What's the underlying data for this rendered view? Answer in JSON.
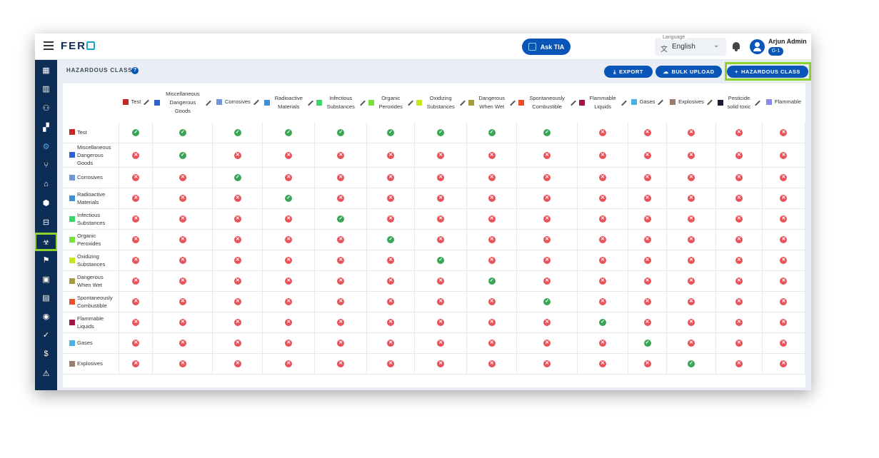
{
  "app": {
    "logo_text": "FER"
  },
  "header": {
    "ask_label": "Ask TIA",
    "language_caption": "Language",
    "language_value": "English",
    "user_name": "Arjun Admin",
    "user_badge": "G-1"
  },
  "sidebar": {
    "items": [
      {
        "icon": "dashboard-icon",
        "glyph": "▦"
      },
      {
        "icon": "building-icon",
        "glyph": "▥"
      },
      {
        "icon": "people-icon",
        "glyph": "⚇"
      },
      {
        "icon": "truck-icon",
        "glyph": "▞"
      },
      {
        "icon": "settings-icon",
        "glyph": "⚙"
      },
      {
        "icon": "fork-icon",
        "glyph": "⑂"
      },
      {
        "icon": "warehouse-icon",
        "glyph": "⌂"
      },
      {
        "icon": "package-icon",
        "glyph": "⬢"
      },
      {
        "icon": "briefcase-icon",
        "glyph": "⊟"
      },
      {
        "icon": "hazard-icon",
        "glyph": "☣"
      },
      {
        "icon": "flag-icon",
        "glyph": "⚑"
      },
      {
        "icon": "id-card-icon",
        "glyph": "▣"
      },
      {
        "icon": "document-icon",
        "glyph": "▤"
      },
      {
        "icon": "cash-icon",
        "glyph": "◉"
      },
      {
        "icon": "check-icon",
        "glyph": "✓"
      },
      {
        "icon": "dollar-icon",
        "glyph": "$"
      },
      {
        "icon": "alert-icon",
        "glyph": "⚠"
      }
    ]
  },
  "page": {
    "title": "HAZARDOUS CLASS",
    "export_label": "EXPORT",
    "bulk_upload_label": "BULK UPLOAD",
    "add_label": "HAZARDOUS CLASS"
  },
  "classes": [
    {
      "name": "Test",
      "color": "#c62828"
    },
    {
      "name": "Miscellaneous Dangerous Goods",
      "color": "#2f5fd0"
    },
    {
      "name": "Corrosives",
      "color": "#6f94d8"
    },
    {
      "name": "Radioactive Materials",
      "color": "#3f8ed8"
    },
    {
      "name": "Infectious Substances",
      "color": "#3bd66a"
    },
    {
      "name": "Organic Peroxides",
      "color": "#7be03a"
    },
    {
      "name": "Oxidizing Substances",
      "color": "#c5e81a"
    },
    {
      "name": "Dangerous When Wet",
      "color": "#a89a3a"
    },
    {
      "name": "Spontaneously Combustible",
      "color": "#e8502a"
    },
    {
      "name": "Flammable Liquids",
      "color": "#a0184a"
    },
    {
      "name": "Gases",
      "color": "#4ab0e8"
    },
    {
      "name": "Explosives",
      "color": "#9c7c6a"
    },
    {
      "name": "Pesticide solid toxic",
      "color": "#1a1a3a"
    },
    {
      "name": "Flammable",
      "color": "#8c8ce8"
    }
  ],
  "rows": [
    {
      "name": "Test",
      "color": "#c62828",
      "cells": [
        1,
        1,
        1,
        1,
        1,
        1,
        1,
        1,
        1,
        0,
        0,
        0,
        0,
        0
      ]
    },
    {
      "name": "Miscellaneous Dangerous Goods",
      "color": "#2f5fd0",
      "cells": [
        0,
        1,
        0,
        0,
        0,
        0,
        0,
        0,
        0,
        0,
        0,
        0,
        0,
        0
      ]
    },
    {
      "name": "Corrosives",
      "color": "#6f94d8",
      "cells": [
        0,
        0,
        1,
        0,
        0,
        0,
        0,
        0,
        0,
        0,
        0,
        0,
        0,
        0
      ]
    },
    {
      "name": "Radioactive Materials",
      "color": "#3f8ed8",
      "cells": [
        0,
        0,
        0,
        1,
        0,
        0,
        0,
        0,
        0,
        0,
        0,
        0,
        0,
        0
      ]
    },
    {
      "name": "Infectious Substances",
      "color": "#3bd66a",
      "cells": [
        0,
        0,
        0,
        0,
        1,
        0,
        0,
        0,
        0,
        0,
        0,
        0,
        0,
        0
      ]
    },
    {
      "name": "Organic Peroxides",
      "color": "#7be03a",
      "cells": [
        0,
        0,
        0,
        0,
        0,
        1,
        0,
        0,
        0,
        0,
        0,
        0,
        0,
        0
      ]
    },
    {
      "name": "Oxidizing Substances",
      "color": "#c5e81a",
      "cells": [
        0,
        0,
        0,
        0,
        0,
        0,
        1,
        0,
        0,
        0,
        0,
        0,
        0,
        0
      ]
    },
    {
      "name": "Dangerous When Wet",
      "color": "#a89a3a",
      "cells": [
        0,
        0,
        0,
        0,
        0,
        0,
        0,
        1,
        0,
        0,
        0,
        0,
        0,
        0
      ]
    },
    {
      "name": "Spontaneously Combustible",
      "color": "#e8502a",
      "cells": [
        0,
        0,
        0,
        0,
        0,
        0,
        0,
        0,
        1,
        0,
        0,
        0,
        0,
        0
      ]
    },
    {
      "name": "Flammable Liquids",
      "color": "#a0184a",
      "cells": [
        0,
        0,
        0,
        0,
        0,
        0,
        0,
        0,
        0,
        1,
        0,
        0,
        0,
        0
      ]
    },
    {
      "name": "Gases",
      "color": "#4ab0e8",
      "cells": [
        0,
        0,
        0,
        0,
        0,
        0,
        0,
        0,
        0,
        0,
        1,
        0,
        0,
        0
      ]
    },
    {
      "name": "Explosives",
      "color": "#9c7c6a",
      "cells": [
        0,
        0,
        0,
        0,
        0,
        0,
        0,
        0,
        0,
        0,
        0,
        1,
        0,
        0
      ]
    }
  ]
}
